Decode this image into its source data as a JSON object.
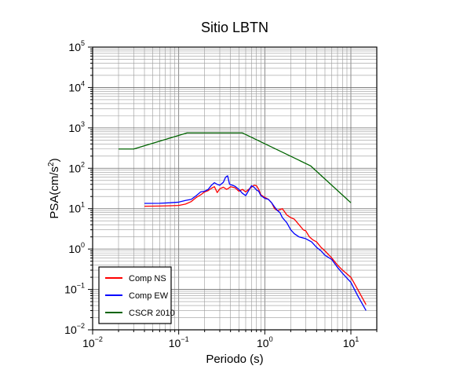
{
  "chart_data": {
    "type": "line",
    "title": "Sitio LBTN",
    "xlabel": "Periodo (s)",
    "ylabel_prefix": "PSA(cm/s",
    "ylabel_sup": "2",
    "ylabel_suffix": ")",
    "xscale": "log",
    "yscale": "log",
    "xlim": [
      0.01,
      20
    ],
    "ylim": [
      0.01,
      100000
    ],
    "grid": true,
    "legend_position": "bottom-left",
    "x_ticks": [
      {
        "base": "10",
        "exp": "−2",
        "value": 0.01
      },
      {
        "base": "10",
        "exp": "−1",
        "value": 0.1
      },
      {
        "base": "10",
        "exp": "0",
        "value": 1
      },
      {
        "base": "10",
        "exp": "1",
        "value": 10
      }
    ],
    "y_ticks": [
      {
        "base": "10",
        "exp": "−2",
        "value": 0.01
      },
      {
        "base": "10",
        "exp": "−1",
        "value": 0.1
      },
      {
        "base": "10",
        "exp": "0",
        "value": 1
      },
      {
        "base": "10",
        "exp": "1",
        "value": 10
      },
      {
        "base": "10",
        "exp": "2",
        "value": 100
      },
      {
        "base": "10",
        "exp": "3",
        "value": 1000
      },
      {
        "base": "10",
        "exp": "4",
        "value": 10000
      },
      {
        "base": "10",
        "exp": "5",
        "value": 100000
      }
    ],
    "series": [
      {
        "name": "Comp NS",
        "color": "#ff0000",
        "points": [
          [
            0.04,
            11.5
          ],
          [
            0.06,
            11.6
          ],
          [
            0.08,
            11.8
          ],
          [
            0.1,
            12
          ],
          [
            0.12,
            13
          ],
          [
            0.14,
            15
          ],
          [
            0.16,
            19
          ],
          [
            0.18,
            22
          ],
          [
            0.2,
            26
          ],
          [
            0.22,
            28
          ],
          [
            0.24,
            32
          ],
          [
            0.26,
            35
          ],
          [
            0.28,
            25
          ],
          [
            0.3,
            31
          ],
          [
            0.33,
            34
          ],
          [
            0.36,
            30
          ],
          [
            0.38,
            32
          ],
          [
            0.4,
            35
          ],
          [
            0.45,
            33
          ],
          [
            0.5,
            27
          ],
          [
            0.55,
            30
          ],
          [
            0.6,
            26
          ],
          [
            0.65,
            30
          ],
          [
            0.7,
            34
          ],
          [
            0.75,
            38
          ],
          [
            0.8,
            37
          ],
          [
            0.85,
            30
          ],
          [
            0.9,
            22
          ],
          [
            1,
            19
          ],
          [
            1.1,
            17
          ],
          [
            1.2,
            14
          ],
          [
            1.3,
            10
          ],
          [
            1.4,
            9
          ],
          [
            1.5,
            9.5
          ],
          [
            1.6,
            10
          ],
          [
            1.8,
            7
          ],
          [
            2,
            6
          ],
          [
            2.2,
            5.5
          ],
          [
            2.5,
            4
          ],
          [
            2.8,
            3
          ],
          [
            3,
            2.8
          ],
          [
            3.3,
            2
          ],
          [
            3.6,
            1.7
          ],
          [
            4,
            1.5
          ],
          [
            4.5,
            1.1
          ],
          [
            5,
            0.9
          ],
          [
            6,
            0.6
          ],
          [
            7,
            0.4
          ],
          [
            8,
            0.3
          ],
          [
            10,
            0.2
          ],
          [
            12,
            0.1
          ],
          [
            15,
            0.042
          ]
        ]
      },
      {
        "name": "Comp EW",
        "color": "#0000ff",
        "points": [
          [
            0.04,
            13.5
          ],
          [
            0.06,
            13.6
          ],
          [
            0.08,
            14
          ],
          [
            0.1,
            14.5
          ],
          [
            0.12,
            16
          ],
          [
            0.14,
            17
          ],
          [
            0.16,
            21
          ],
          [
            0.18,
            26
          ],
          [
            0.2,
            27
          ],
          [
            0.22,
            30
          ],
          [
            0.24,
            38
          ],
          [
            0.26,
            44
          ],
          [
            0.28,
            40
          ],
          [
            0.3,
            38
          ],
          [
            0.33,
            45
          ],
          [
            0.35,
            60
          ],
          [
            0.37,
            65
          ],
          [
            0.39,
            40
          ],
          [
            0.42,
            38
          ],
          [
            0.45,
            36
          ],
          [
            0.5,
            30
          ],
          [
            0.55,
            24
          ],
          [
            0.6,
            21
          ],
          [
            0.65,
            28
          ],
          [
            0.7,
            37
          ],
          [
            0.75,
            34
          ],
          [
            0.8,
            29
          ],
          [
            0.85,
            27
          ],
          [
            0.9,
            21
          ],
          [
            1,
            18
          ],
          [
            1.1,
            17
          ],
          [
            1.2,
            14
          ],
          [
            1.3,
            11
          ],
          [
            1.4,
            9
          ],
          [
            1.5,
            8
          ],
          [
            1.6,
            6
          ],
          [
            1.8,
            4.5
          ],
          [
            2,
            3
          ],
          [
            2.2,
            2.4
          ],
          [
            2.5,
            2
          ],
          [
            3,
            1.8
          ],
          [
            3.5,
            1.5
          ],
          [
            4,
            1.1
          ],
          [
            4.5,
            0.9
          ],
          [
            5,
            0.7
          ],
          [
            6,
            0.55
          ],
          [
            7,
            0.35
          ],
          [
            8,
            0.25
          ],
          [
            10,
            0.15
          ],
          [
            12,
            0.07
          ],
          [
            15,
            0.03
          ]
        ]
      },
      {
        "name": "CSCR 2010",
        "color": "#006400",
        "points": [
          [
            0.02,
            300
          ],
          [
            0.03,
            300
          ],
          [
            0.125,
            750
          ],
          [
            0.55,
            750
          ],
          [
            3.4,
            115
          ],
          [
            10,
            14
          ]
        ]
      }
    ]
  }
}
